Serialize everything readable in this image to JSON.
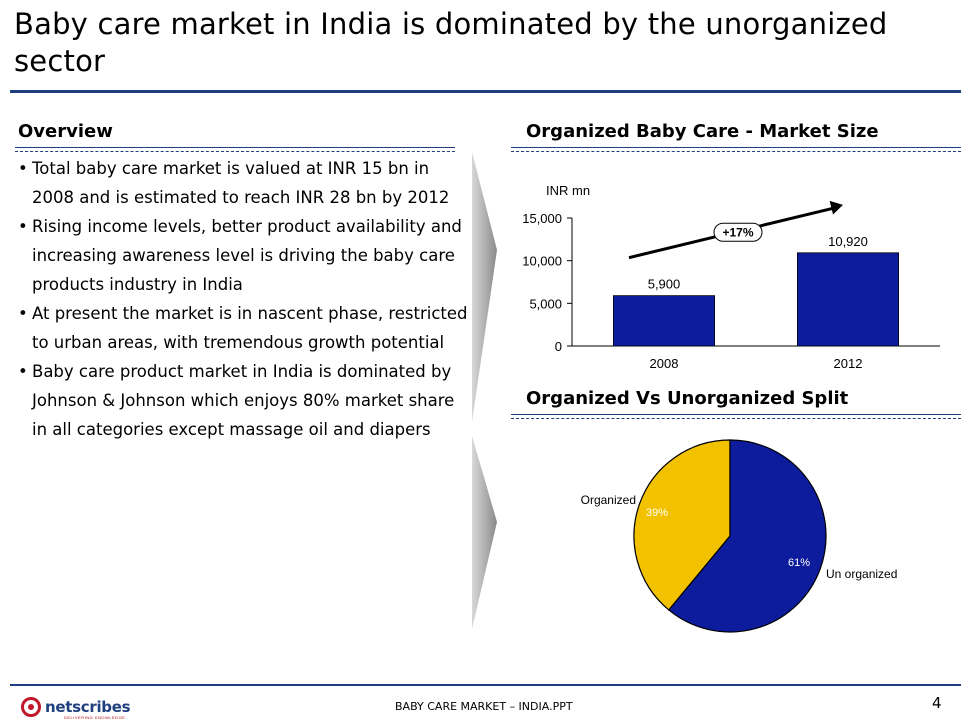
{
  "slide": {
    "title": "Baby care market in India is dominated by the unorganized sector",
    "page_number": "4",
    "footer": "BABY CARE MARKET – INDIA.PPT",
    "logo_text": "netscribes",
    "logo_tagline": "DELIVERING KNOWLEDGE"
  },
  "overview": {
    "heading": "Overview",
    "bullets": [
      "Total baby care market is valued at INR 15 bn in 2008 and is estimated to reach INR 28 bn by 2012",
      "Rising income levels, better product availability and increasing awareness level is driving the baby care products industry in India",
      "At present the market is in nascent phase, restricted to urban areas, with tremendous growth potential",
      "Baby care product market in India is dominated by Johnson & Johnson which enjoys 80% market share in all categories except massage oil and diapers"
    ]
  },
  "market_size": {
    "heading": "Organized Baby Care - Market Size",
    "growth_label": "+17%"
  },
  "split": {
    "heading": "Organized Vs Unorganized Split"
  },
  "colors": {
    "navy": "#1f3f7f",
    "bar": "#0d1c9c",
    "organized": "#f2c100",
    "unorganized": "#0d1c9c"
  },
  "chart_data": [
    {
      "type": "bar",
      "title": "Organized Baby Care - Market Size",
      "ylabel": "INR mn",
      "categories": [
        "2008",
        "2012"
      ],
      "values": [
        5900,
        10920
      ],
      "value_labels": [
        "5,900",
        "10,920"
      ],
      "yticks": [
        0,
        5000,
        10000,
        15000
      ],
      "ytick_labels": [
        "0",
        "5,000",
        "10,000",
        "15,000"
      ],
      "ylim": [
        0,
        15000
      ],
      "annotation": "+17%"
    },
    {
      "type": "pie",
      "title": "Organized Vs Unorganized Split",
      "labels": [
        "Organized",
        "Un organized"
      ],
      "values": [
        39,
        61
      ],
      "value_labels": [
        "39%",
        "61%"
      ]
    }
  ]
}
